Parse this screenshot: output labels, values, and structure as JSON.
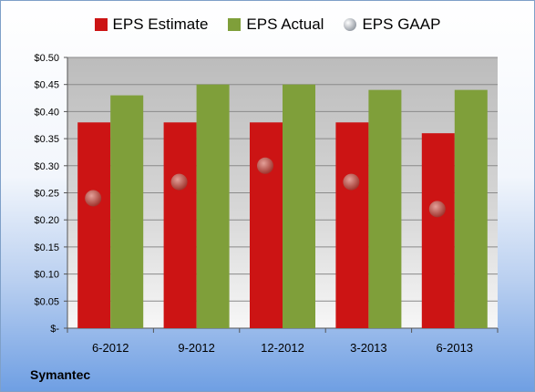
{
  "chart_data": {
    "type": "bar",
    "categories": [
      "6-2012",
      "9-2012",
      "12-2012",
      "3-2013",
      "6-2013"
    ],
    "series": [
      {
        "name": "EPS Estimate",
        "kind": "bar",
        "color": "#cc1414",
        "values": [
          0.38,
          0.38,
          0.38,
          0.38,
          0.36
        ]
      },
      {
        "name": "EPS Actual",
        "kind": "bar",
        "color": "#7f9f3a",
        "values": [
          0.43,
          0.45,
          0.45,
          0.44,
          0.44
        ]
      },
      {
        "name": "EPS GAAP",
        "kind": "marker",
        "color": "#9aa0a8",
        "values": [
          0.24,
          0.27,
          0.3,
          0.27,
          0.22
        ]
      }
    ],
    "yticks": [
      "$-",
      "$0.05",
      "$0.10",
      "$0.15",
      "$0.20",
      "$0.25",
      "$0.30",
      "$0.35",
      "$0.40",
      "$0.45",
      "$0.50"
    ],
    "ylim": [
      0,
      0.5
    ],
    "grid": true,
    "legend_position": "top"
  },
  "footer": {
    "company": "Symantec"
  }
}
